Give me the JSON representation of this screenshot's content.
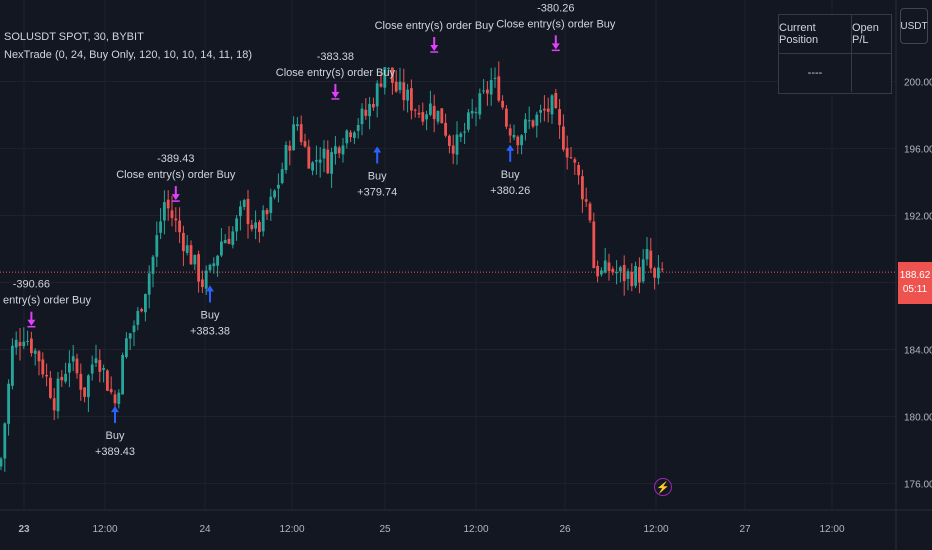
{
  "legend": {
    "symbol_line": "SOLUSDT SPOT, 30, BYBIT",
    "strategy_line": "NexTrade (0, 24, Buy Only, 120, 10, 10, 14, 11, 18)"
  },
  "currency_button": "USDT",
  "position_table": {
    "header_position": "Current Position",
    "header_pl": "Open P/L",
    "position_value": "----",
    "pl_value": ""
  },
  "price_tag": {
    "price": "188.62",
    "countdown": "05:11",
    "color": "#ef5350"
  },
  "colors": {
    "background": "#131722",
    "up": "#26a69a",
    "down": "#ef5350",
    "buy_arrow": "#2962ff",
    "exit_arrow": "#e040fb",
    "grid": "#1e222d",
    "text": "#d1d4dc"
  },
  "icons": {
    "alert": "lightning-bolt-icon"
  },
  "chart_data": {
    "type": "candlestick",
    "symbol": "SOLUSDT",
    "timeframe": "30",
    "exchange": "BYBIT",
    "ylim": [
      174.5,
      204
    ],
    "y_ticks": [
      176,
      180,
      184,
      188,
      192,
      196,
      200
    ],
    "x_ticks": [
      "23",
      "12:00",
      "24",
      "12:00",
      "25",
      "12:00",
      "26",
      "12:00",
      "27",
      "12:00"
    ],
    "current_price": 188.62,
    "grid": true,
    "close_path": [
      [
        0,
        177.5
      ],
      [
        3,
        184.0
      ],
      [
        6,
        185.0
      ],
      [
        10,
        183.5
      ],
      [
        14,
        181.0
      ],
      [
        18,
        183.5
      ],
      [
        22,
        181.5
      ],
      [
        25,
        184.0
      ],
      [
        28,
        182.0
      ],
      [
        30,
        180.8
      ],
      [
        33,
        184.5
      ],
      [
        36,
        186.0
      ],
      [
        40,
        189.5
      ],
      [
        43,
        192.8
      ],
      [
        46,
        191.5
      ],
      [
        49,
        190.0
      ],
      [
        51,
        189.0
      ],
      [
        53,
        188.0
      ],
      [
        55,
        188.5
      ],
      [
        58,
        190.5
      ],
      [
        61,
        191.0
      ],
      [
        64,
        192.5
      ],
      [
        67,
        191.0
      ],
      [
        70,
        192.0
      ],
      [
        73,
        194.0
      ],
      [
        76,
        196.5
      ],
      [
        78,
        197.5
      ],
      [
        80,
        196.0
      ],
      [
        82,
        195.0
      ],
      [
        84,
        195.8
      ],
      [
        86,
        195.2
      ],
      [
        88,
        196.0
      ],
      [
        90,
        196.8
      ],
      [
        93,
        197.5
      ],
      [
        96,
        198.0
      ],
      [
        99,
        199.5
      ],
      [
        101,
        201.0
      ],
      [
        104,
        199.5
      ],
      [
        107,
        199.0
      ],
      [
        110,
        198.2
      ],
      [
        113,
        198.5
      ],
      [
        116,
        197.8
      ],
      [
        118,
        196.5
      ],
      [
        120,
        196.2
      ],
      [
        122,
        197.0
      ],
      [
        124,
        198.0
      ],
      [
        127,
        199.0
      ],
      [
        129,
        200.0
      ],
      [
        131,
        199.5
      ],
      [
        133,
        197.5
      ],
      [
        136,
        196.8
      ],
      [
        139,
        197.5
      ],
      [
        142,
        198.0
      ],
      [
        145,
        198.5
      ],
      [
        147,
        197.0
      ],
      [
        150,
        195.5
      ],
      [
        153,
        193.5
      ],
      [
        155,
        192.0
      ],
      [
        156,
        189.0
      ],
      [
        158,
        188.5
      ],
      [
        160,
        188.8
      ],
      [
        164,
        188.4
      ],
      [
        168,
        188.5
      ],
      [
        170,
        189.5
      ],
      [
        172,
        188.0
      ],
      [
        174,
        188.6
      ]
    ],
    "x_bar_range": [
      0,
      174
    ],
    "signals": [
      {
        "type": "buy",
        "bar": 30,
        "price": 180.8,
        "label": "Buy",
        "value": "+389.43"
      },
      {
        "type": "exit",
        "bar": 8,
        "price": 185.3,
        "label": "Close entry(s) order Buy",
        "value": "-390.66"
      },
      {
        "type": "buy",
        "bar": 55,
        "price": 188.0,
        "label": "Buy",
        "value": "+383.38"
      },
      {
        "type": "exit",
        "bar": 46,
        "price": 192.8,
        "label": "Close entry(s) order Buy",
        "value": "-389.43"
      },
      {
        "type": "buy",
        "bar": 99,
        "price": 196.3,
        "label": "Buy",
        "value": "+379.74"
      },
      {
        "type": "exit",
        "bar": 88,
        "price": 198.9,
        "label": "Close entry(s) order Buy",
        "value": "-383.38"
      },
      {
        "type": "buy",
        "bar": 134,
        "price": 196.4,
        "label": "Buy",
        "value": "+380.26"
      },
      {
        "type": "exit",
        "bar": 114,
        "price": 201.7,
        "label": "Close entry(s) order Buy",
        "value": ""
      },
      {
        "type": "exit",
        "bar": 146,
        "price": 201.8,
        "label": "Close entry(s) order Buy",
        "value": "-380.26"
      }
    ]
  }
}
